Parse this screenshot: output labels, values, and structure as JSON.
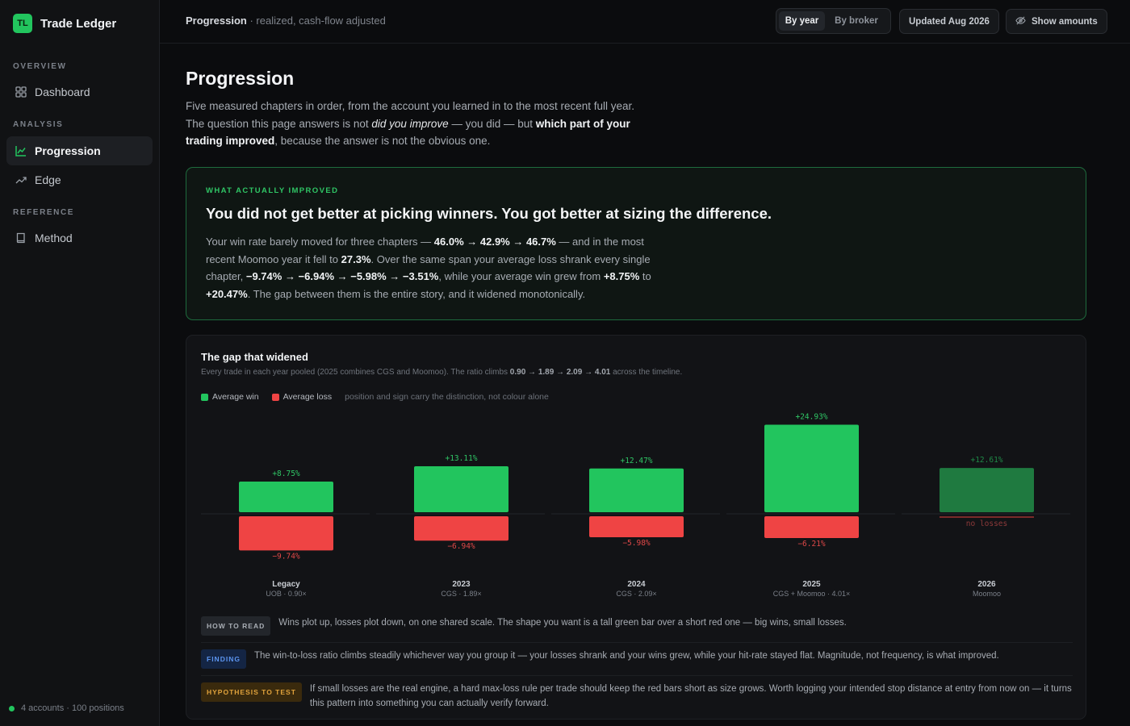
{
  "app": {
    "logo_text": "TL",
    "name": "Trade Ledger",
    "accent": "#22c55e"
  },
  "sidebar": {
    "sections": [
      {
        "label": "OVERVIEW",
        "items": [
          {
            "label": "Dashboard",
            "icon": "grid-icon",
            "active": false
          }
        ]
      },
      {
        "label": "ANALYSIS",
        "items": [
          {
            "label": "Progression",
            "icon": "line-chart-icon",
            "active": true
          },
          {
            "label": "Edge",
            "icon": "trend-up-icon",
            "active": false
          }
        ]
      },
      {
        "label": "REFERENCE",
        "items": [
          {
            "label": "Method",
            "icon": "book-icon",
            "active": false
          }
        ]
      }
    ],
    "footer": "4 accounts · 100 positions"
  },
  "topbar": {
    "title": "Progression",
    "subtitle": " · realized, cash-flow adjusted",
    "toggle": {
      "options": [
        "By year",
        "By broker"
      ],
      "selected": "By year"
    },
    "updated": "Updated Aug 2026",
    "show_amounts": "Show amounts"
  },
  "page": {
    "title": "Progression",
    "intro": {
      "p1": "Five measured chapters in order, from the account you learned in to the most recent full year. The question this page answers is not ",
      "em": "did you improve",
      "p2": " — you did — but ",
      "strong": "which part of your trading improved",
      "p3": ", because the answer is not the obvious one."
    }
  },
  "callout": {
    "kicker": "WHAT ACTUALLY IMPROVED",
    "headline": "You did not get better at picking winners. You got better at sizing the difference.",
    "body": {
      "t1": "Your win rate barely moved for three chapters — ",
      "b1": "46.0% → 42.9% → 46.7%",
      "t2": " — and in the most recent Moomoo year it fell to ",
      "b2": "27.3%",
      "t3": ". Over the same span your average loss shrank every single chapter, ",
      "b3": "−9.74% → −6.94% → −5.98% → −3.51%",
      "t4": ", while your average win grew from ",
      "b4": "+8.75%",
      "t5": " to ",
      "b5": "+20.47%",
      "t6": ". The gap between them is the entire story, and it widened monotonically."
    }
  },
  "chart": {
    "title": "The gap that widened",
    "subtitle": {
      "t1": "Every trade in each year pooled (2025 combines CGS and Moomoo). The ratio climbs ",
      "ratios": "0.90 → 1.89 → 2.09 → 4.01",
      "t2": " across the timeline."
    },
    "legend": {
      "win": "Average win",
      "loss": "Average loss",
      "note": "position and sign carry the distinction, not colour alone"
    },
    "colors": {
      "win": "#22c55e",
      "loss": "#ef4444",
      "win_muted": "#1f7a40"
    }
  },
  "chart_data": {
    "type": "bar",
    "categories": [
      "Legacy",
      "2023",
      "2024",
      "2025",
      "2026"
    ],
    "category_subs": [
      "UOB · 0.90×",
      "CGS · 1.89×",
      "CGS · 2.09×",
      "CGS + Moomoo · 4.01×",
      "Moomoo"
    ],
    "series": [
      {
        "name": "Average win",
        "values": [
          8.75,
          13.11,
          12.47,
          24.93,
          12.61
        ],
        "labels": [
          "+8.75%",
          "+13.11%",
          "+12.47%",
          "+24.93%",
          "+12.61%"
        ]
      },
      {
        "name": "Average loss",
        "values": [
          -9.74,
          -6.94,
          -5.98,
          -6.21,
          0
        ],
        "labels": [
          "−9.74%",
          "−6.94%",
          "−5.98%",
          "−6.21%",
          "no losses"
        ]
      }
    ]
  },
  "notes": [
    {
      "tag": "HOW TO READ",
      "kind": "read",
      "text": "Wins plot up, losses plot down, on one shared scale. The shape you want is a tall green bar over a short red one — big wins, small losses."
    },
    {
      "tag": "FINDING",
      "kind": "find",
      "text": "The win-to-loss ratio climbs steadily whichever way you group it — your losses shrank and your wins grew, while your hit-rate stayed flat. Magnitude, not frequency, is what improved."
    },
    {
      "tag": "HYPOTHESIS TO TEST",
      "kind": "hypo",
      "text": "If small losses are the real engine, a hard max-loss rule per trade should keep the red bars short as size grows. Worth logging your intended stop distance at entry from now on — it turns this pattern into something you can actually verify forward."
    }
  ]
}
